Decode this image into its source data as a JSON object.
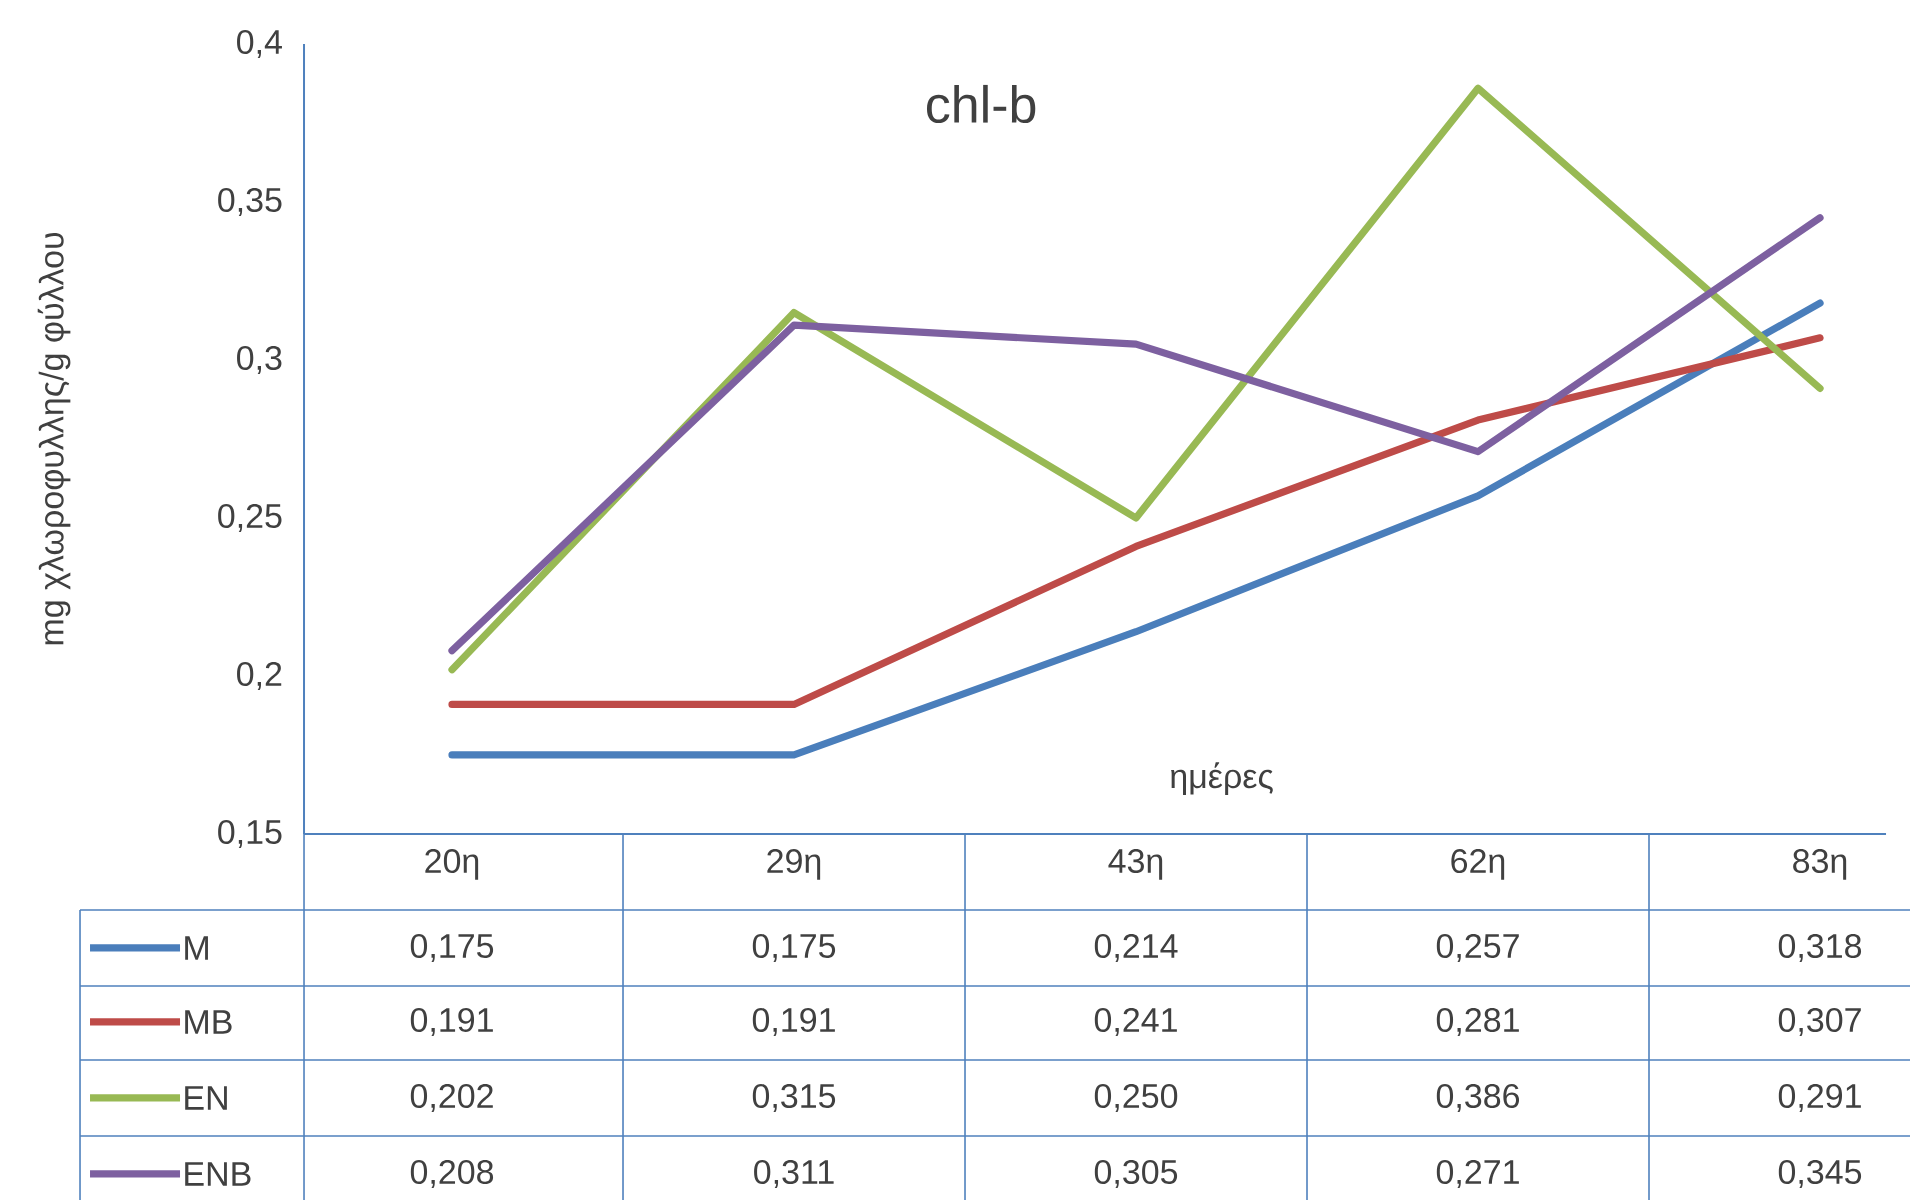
{
  "chart_data": {
    "type": "line",
    "title": "chl-b",
    "xlabel": "ημέρες",
    "ylabel": "mg χλωροφυλλης/g φύλλου",
    "categories": [
      "20η",
      "29η",
      "43η",
      "62η",
      "83η"
    ],
    "ylim": [
      0.15,
      0.4
    ],
    "yticks": [
      {
        "value": 0.15,
        "label": "0,15"
      },
      {
        "value": 0.2,
        "label": "0,2"
      },
      {
        "value": 0.25,
        "label": "0,25"
      },
      {
        "value": 0.3,
        "label": "0,3"
      },
      {
        "value": 0.35,
        "label": "0,35"
      },
      {
        "value": 0.4,
        "label": "0,4"
      }
    ],
    "grid": false,
    "legend": "bottom",
    "marker": "none",
    "line_style": "solid",
    "series": [
      {
        "name": "M",
        "color": "#4a7ebb",
        "values": [
          0.175,
          0.175,
          0.214,
          0.257,
          0.318
        ],
        "value_labels": [
          "0,175",
          "0,175",
          "0,214",
          "0,257",
          "0,318"
        ]
      },
      {
        "name": "MB",
        "color": "#be4b48",
        "values": [
          0.191,
          0.191,
          0.241,
          0.281,
          0.307
        ],
        "value_labels": [
          "0,191",
          "0,191",
          "0,241",
          "0,281",
          "0,307"
        ]
      },
      {
        "name": "EN",
        "color": "#98b954",
        "values": [
          0.202,
          0.315,
          0.25,
          0.386,
          0.291
        ],
        "value_labels": [
          "0,202",
          "0,315",
          "0,250",
          "0,386",
          "0,291"
        ]
      },
      {
        "name": "ENB",
        "color": "#7d60a0",
        "values": [
          0.208,
          0.311,
          0.305,
          0.271,
          0.345
        ],
        "value_labels": [
          "0,208",
          "0,311",
          "0,305",
          "0,271",
          "0,345"
        ]
      }
    ]
  }
}
